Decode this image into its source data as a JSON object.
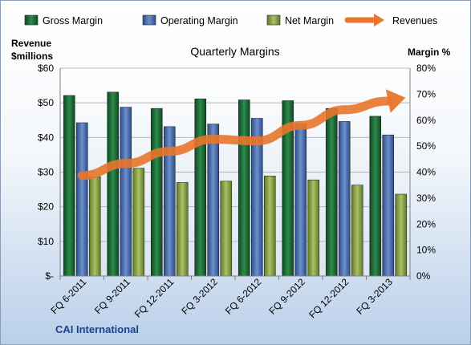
{
  "chart_data": {
    "type": "bar",
    "title": "Quarterly Margins",
    "company": "CAI International",
    "left_axis_label": [
      "Revenue",
      "$millions"
    ],
    "right_axis_label": "Margin %",
    "categories": [
      "FQ 6-2011",
      "FQ 9-2011",
      "FQ 12-2011",
      "FQ 3-2012",
      "FQ 6-2012",
      "FQ 9-2012",
      "FQ 12-2012",
      "FQ 3-2013"
    ],
    "left_ticks": [
      "$-",
      "$10",
      "$20",
      "$30",
      "$40",
      "$50",
      "$60"
    ],
    "right_ticks": [
      "0%",
      "10%",
      "20%",
      "30%",
      "40%",
      "50%",
      "60%",
      "70%",
      "80%"
    ],
    "left_ylim": [
      0,
      60
    ],
    "right_ylim": [
      0,
      80
    ],
    "series": [
      {
        "name": "Gross Margin",
        "axis": "right",
        "color": "#1e6b3a",
        "values": [
          69.5,
          70.8,
          64.5,
          68.2,
          67.8,
          67.5,
          64.5,
          61.5
        ]
      },
      {
        "name": "Operating Margin",
        "axis": "right",
        "color": "#4a6fb0",
        "values": [
          59,
          65,
          57.5,
          58.5,
          60.7,
          58.5,
          59.5,
          54.3
        ]
      },
      {
        "name": "Net Margin",
        "axis": "right",
        "color": "#8aa048",
        "values": [
          38.2,
          41.5,
          36,
          36.5,
          38.5,
          37,
          35,
          31.5
        ]
      },
      {
        "name": "Revenues",
        "axis": "left",
        "type": "line",
        "color": "#e8762b",
        "values": [
          29,
          32.5,
          36,
          39.5,
          39,
          43.5,
          48,
          50.5
        ]
      }
    ],
    "legend_position": "top",
    "grid": true
  }
}
